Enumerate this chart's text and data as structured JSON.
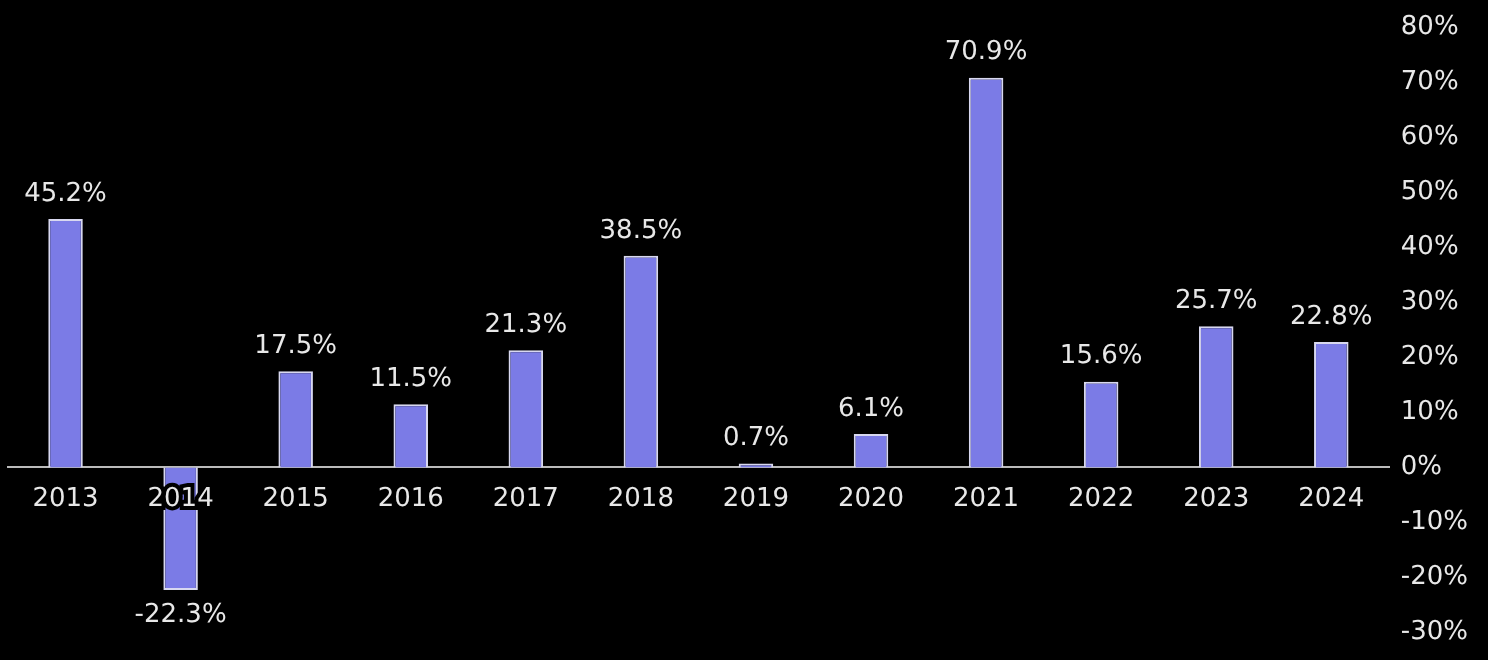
{
  "chart_data": {
    "type": "bar",
    "categories": [
      "2013",
      "2014",
      "2015",
      "2016",
      "2017",
      "2018",
      "2019",
      "2020",
      "2021",
      "2022",
      "2023",
      "2024"
    ],
    "values": [
      45.2,
      -22.3,
      17.5,
      11.5,
      21.3,
      38.5,
      0.7,
      6.1,
      70.9,
      15.6,
      25.7,
      22.8
    ],
    "value_labels": [
      "45.2%",
      "-22.3%",
      "17.5%",
      "11.5%",
      "21.3%",
      "38.5%",
      "0.7%",
      "6.1%",
      "70.9%",
      "15.6%",
      "25.7%",
      "22.8%"
    ],
    "color": "#7b7be6",
    "ylim": [
      -30,
      80
    ],
    "yticks": [
      {
        "value": -30,
        "label": "-30%"
      },
      {
        "value": -20,
        "label": "-20%"
      },
      {
        "value": -10,
        "label": "-10%"
      },
      {
        "value": 0,
        "label": "0%"
      },
      {
        "value": 10,
        "label": "10%"
      },
      {
        "value": 20,
        "label": "20%"
      },
      {
        "value": 30,
        "label": "30%"
      },
      {
        "value": 40,
        "label": "40%"
      },
      {
        "value": 50,
        "label": "50%"
      },
      {
        "value": 60,
        "label": "60%"
      },
      {
        "value": 70,
        "label": "70%"
      },
      {
        "value": 80,
        "label": "80%"
      }
    ],
    "grid": false,
    "legend": false
  }
}
